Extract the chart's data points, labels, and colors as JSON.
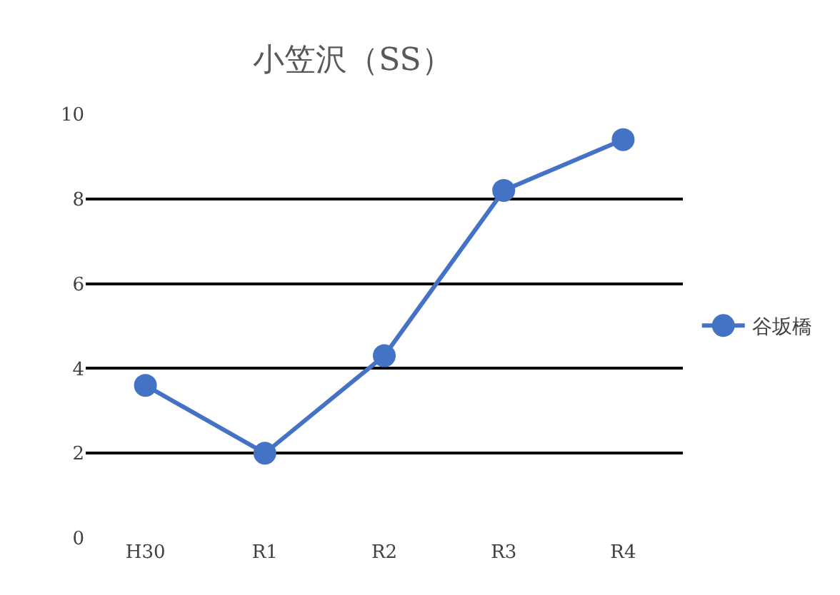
{
  "chart_data": {
    "type": "line",
    "title": "小笠沢（SS）",
    "categories": [
      "H30",
      "R1",
      "R2",
      "R3",
      "R4"
    ],
    "series": [
      {
        "name": "谷坂橋",
        "color": "#4472c4",
        "values": [
          3.6,
          2.0,
          4.3,
          8.2,
          9.4
        ]
      }
    ],
    "ylim": [
      0,
      10
    ],
    "yticks": [
      0,
      2,
      4,
      6,
      8,
      10
    ],
    "grid": "y",
    "legend": "right",
    "marker": "circle",
    "line_style": "solid"
  }
}
